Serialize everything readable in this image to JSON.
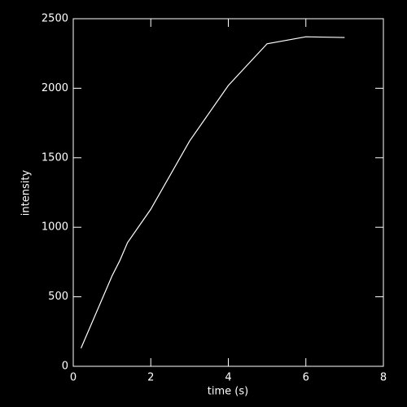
{
  "chart_data": {
    "type": "line",
    "x_label": "time (s)",
    "y_label": "intensity",
    "x": [
      0.2,
      1.0,
      1.2,
      1.4,
      2.0,
      3.0,
      4.0,
      5.0,
      6.0,
      7.0
    ],
    "values": [
      130,
      650,
      760,
      890,
      1130,
      1620,
      2020,
      2320,
      2370,
      2365
    ],
    "color": "#ffffff",
    "xlim": [
      0,
      8
    ],
    "xticks": [
      0,
      2,
      4,
      6,
      8
    ],
    "ylim": [
      0,
      2500
    ],
    "yticks": [
      0,
      500,
      1000,
      1500,
      2000,
      2500
    ]
  }
}
